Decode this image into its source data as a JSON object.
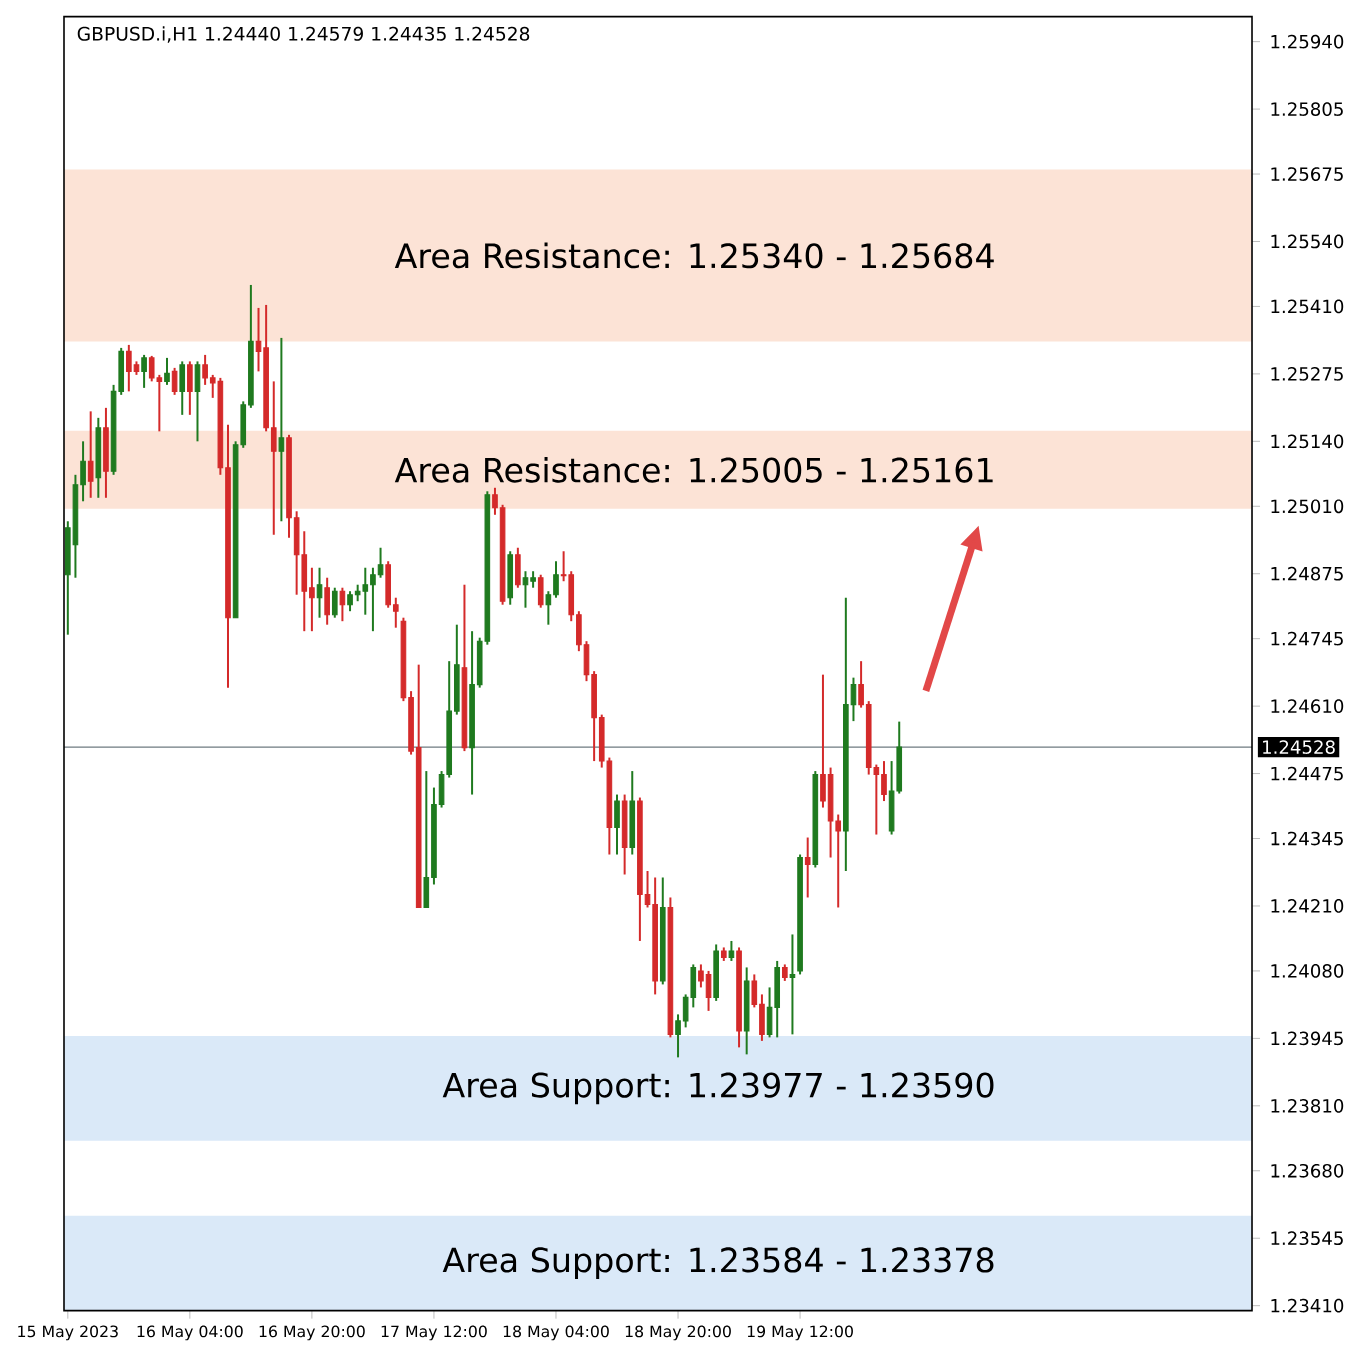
{
  "chart_data": {
    "type": "candlestick",
    "title": "GBPUSD.i,H1  1.24440 1.24579 1.24435 1.24528",
    "x": [
      "2023-05-15T12:00",
      "2023-05-15T13:00",
      "2023-05-15T14:00",
      "2023-05-15T15:00",
      "2023-05-15T16:00",
      "2023-05-15T17:00",
      "2023-05-15T18:00",
      "2023-05-15T19:00",
      "2023-05-15T20:00",
      "2023-05-15T21:00",
      "2023-05-15T22:00",
      "2023-05-15T23:00",
      "2023-05-16T00:00",
      "2023-05-16T01:00",
      "2023-05-16T02:00",
      "2023-05-16T03:00",
      "2023-05-16T04:00",
      "2023-05-16T05:00",
      "2023-05-16T06:00",
      "2023-05-16T07:00",
      "2023-05-16T08:00",
      "2023-05-16T09:00",
      "2023-05-16T10:00",
      "2023-05-16T11:00",
      "2023-05-16T12:00",
      "2023-05-16T13:00",
      "2023-05-16T14:00",
      "2023-05-16T15:00",
      "2023-05-16T16:00",
      "2023-05-16T17:00",
      "2023-05-16T18:00",
      "2023-05-16T19:00",
      "2023-05-16T20:00",
      "2023-05-16T21:00",
      "2023-05-16T22:00",
      "2023-05-16T23:00",
      "2023-05-17T00:00",
      "2023-05-17T01:00",
      "2023-05-17T02:00",
      "2023-05-17T03:00",
      "2023-05-17T04:00",
      "2023-05-17T05:00",
      "2023-05-17T06:00",
      "2023-05-17T07:00",
      "2023-05-17T08:00",
      "2023-05-17T09:00",
      "2023-05-17T10:00",
      "2023-05-17T11:00",
      "2023-05-17T12:00",
      "2023-05-17T13:00",
      "2023-05-17T14:00",
      "2023-05-17T15:00",
      "2023-05-17T16:00",
      "2023-05-17T17:00",
      "2023-05-17T18:00",
      "2023-05-17T19:00",
      "2023-05-17T20:00",
      "2023-05-17T21:00",
      "2023-05-17T22:00",
      "2023-05-17T23:00",
      "2023-05-18T00:00",
      "2023-05-18T01:00",
      "2023-05-18T02:00",
      "2023-05-18T03:00",
      "2023-05-18T04:00",
      "2023-05-18T05:00",
      "2023-05-18T06:00",
      "2023-05-18T07:00",
      "2023-05-18T08:00",
      "2023-05-18T09:00",
      "2023-05-18T10:00",
      "2023-05-18T11:00",
      "2023-05-18T12:00",
      "2023-05-18T13:00",
      "2023-05-18T14:00",
      "2023-05-18T15:00",
      "2023-05-18T16:00",
      "2023-05-18T17:00",
      "2023-05-18T18:00",
      "2023-05-18T19:00",
      "2023-05-18T20:00",
      "2023-05-18T21:00",
      "2023-05-18T22:00",
      "2023-05-18T23:00",
      "2023-05-19T00:00",
      "2023-05-19T01:00",
      "2023-05-19T02:00",
      "2023-05-19T03:00",
      "2023-05-19T04:00",
      "2023-05-19T05:00",
      "2023-05-19T06:00",
      "2023-05-19T07:00",
      "2023-05-19T08:00",
      "2023-05-19T09:00",
      "2023-05-19T10:00",
      "2023-05-19T11:00",
      "2023-05-19T12:00",
      "2023-05-19T13:00",
      "2023-05-19T14:00",
      "2023-05-19T15:00",
      "2023-05-19T16:00",
      "2023-05-19T17:00",
      "2023-05-19T18:00",
      "2023-05-19T19:00",
      "2023-05-19T20:00",
      "2023-05-19T21:00",
      "2023-05-19T22:00",
      "2023-05-19T23:00",
      "2023-05-20T00:00",
      "2023-05-20T01:00"
    ],
    "ohlc": [
      [
        1.24873,
        1.2498,
        1.24753,
        1.24967
      ],
      [
        1.24933,
        1.25073,
        1.24867,
        1.25053
      ],
      [
        1.25053,
        1.2514,
        1.2502,
        1.251
      ],
      [
        1.251,
        1.252,
        1.25027,
        1.2506
      ],
      [
        1.25067,
        1.25187,
        1.25027,
        1.25167
      ],
      [
        1.25167,
        1.25207,
        1.25027,
        1.2508
      ],
      [
        1.2508,
        1.25253,
        1.25073,
        1.2524
      ],
      [
        1.2524,
        1.25327,
        1.25233,
        1.2532
      ],
      [
        1.2532,
        1.25333,
        1.2524,
        1.2528
      ],
      [
        1.25293,
        1.253,
        1.25273,
        1.2528
      ],
      [
        1.2528,
        1.25313,
        1.25247,
        1.25307
      ],
      [
        1.25307,
        1.25311,
        1.2526,
        1.25267
      ],
      [
        1.25267,
        1.25273,
        1.2516,
        1.2526
      ],
      [
        1.2526,
        1.25307,
        1.25253,
        1.25276
      ],
      [
        1.2528,
        1.25287,
        1.25233,
        1.2524
      ],
      [
        1.2524,
        1.253,
        1.25193,
        1.25293
      ],
      [
        1.25293,
        1.253,
        1.25193,
        1.2524
      ],
      [
        1.2524,
        1.253,
        1.2514,
        1.25293
      ],
      [
        1.25293,
        1.25313,
        1.25253,
        1.25267
      ],
      [
        1.25267,
        1.25273,
        1.25227,
        1.25257
      ],
      [
        1.2526,
        1.25267,
        1.25073,
        1.25087
      ],
      [
        1.25087,
        1.25173,
        1.24647,
        1.24787
      ],
      [
        1.24787,
        1.2514,
        1.24787,
        1.25133
      ],
      [
        1.25133,
        1.2522,
        1.25127,
        1.25213
      ],
      [
        1.25213,
        1.25453,
        1.25207,
        1.2534
      ],
      [
        1.2534,
        1.25407,
        1.2528,
        1.2532
      ],
      [
        1.25327,
        1.25413,
        1.2516,
        1.25167
      ],
      [
        1.25167,
        1.2526,
        1.24953,
        1.2512
      ],
      [
        1.2512,
        1.25347,
        1.2498,
        1.25147
      ],
      [
        1.25147,
        1.25153,
        1.24947,
        1.24987
      ],
      [
        1.24987,
        1.25,
        1.24833,
        1.24913
      ],
      [
        1.24913,
        1.2496,
        1.2476,
        1.2484
      ],
      [
        1.24847,
        1.24887,
        1.2476,
        1.24827
      ],
      [
        1.24827,
        1.24887,
        1.24787,
        1.24853
      ],
      [
        1.24847,
        1.24867,
        1.24773,
        1.24793
      ],
      [
        1.24793,
        1.24847,
        1.24787,
        1.2484
      ],
      [
        1.2484,
        1.24847,
        1.2478,
        1.24813
      ],
      [
        1.24813,
        1.2484,
        1.248,
        1.24833
      ],
      [
        1.24833,
        1.24853,
        1.2482,
        1.2484
      ],
      [
        1.2484,
        1.24887,
        1.24793,
        1.24853
      ],
      [
        1.24853,
        1.24887,
        1.2476,
        1.24873
      ],
      [
        1.24873,
        1.24927,
        1.24867,
        1.24893
      ],
      [
        1.24893,
        1.249,
        1.24807,
        1.24813
      ],
      [
        1.24813,
        1.24827,
        1.24767,
        1.248
      ],
      [
        1.2478,
        1.24787,
        1.2462,
        1.24627
      ],
      [
        1.24627,
        1.2464,
        1.24513,
        1.2452
      ],
      [
        1.24527,
        1.24693,
        1.24207,
        1.24207
      ],
      [
        1.24207,
        1.2448,
        1.24207,
        1.24267
      ],
      [
        1.24267,
        1.24447,
        1.24253,
        1.24413
      ],
      [
        1.24413,
        1.2448,
        1.24407,
        1.24473
      ],
      [
        1.24473,
        1.247,
        1.24467,
        1.246
      ],
      [
        1.246,
        1.24773,
        1.24593,
        1.24693
      ],
      [
        1.24687,
        1.24853,
        1.2452,
        1.24527
      ],
      [
        1.24527,
        1.2476,
        1.24433,
        1.24653
      ],
      [
        1.24653,
        1.24747,
        1.24647,
        1.2474
      ],
      [
        1.2474,
        1.2504,
        1.24733,
        1.25033
      ],
      [
        1.25033,
        1.25047,
        1.24993,
        1.25007
      ],
      [
        1.25007,
        1.25013,
        1.24813,
        1.2482
      ],
      [
        1.24827,
        1.2492,
        1.24813,
        1.24913
      ],
      [
        1.24913,
        1.24927,
        1.24847,
        1.24853
      ],
      [
        1.24853,
        1.2488,
        1.24807,
        1.24867
      ],
      [
        1.2486,
        1.2488,
        1.24847,
        1.24867
      ],
      [
        1.24867,
        1.24873,
        1.24807,
        1.24813
      ],
      [
        1.24813,
        1.2484,
        1.24773,
        1.24833
      ],
      [
        1.24833,
        1.249,
        1.24827,
        1.24873
      ],
      [
        1.24873,
        1.2492,
        1.2486,
        1.24871
      ],
      [
        1.24873,
        1.2488,
        1.2478,
        1.24793
      ],
      [
        1.24793,
        1.248,
        1.2472,
        1.24733
      ],
      [
        1.24733,
        1.2474,
        1.2466,
        1.24673
      ],
      [
        1.24673,
        1.2468,
        1.245,
        1.24587
      ],
      [
        1.24587,
        1.24593,
        1.24487,
        1.245
      ],
      [
        1.245,
        1.24507,
        1.24313,
        1.24367
      ],
      [
        1.24367,
        1.24433,
        1.24313,
        1.2442
      ],
      [
        1.2442,
        1.24433,
        1.24273,
        1.24327
      ],
      [
        1.24327,
        1.2448,
        1.24313,
        1.2442
      ],
      [
        1.2442,
        1.24427,
        1.2414,
        1.24233
      ],
      [
        1.24233,
        1.2428,
        1.24207,
        1.24213
      ],
      [
        1.24213,
        1.24267,
        1.24033,
        1.2406
      ],
      [
        1.2406,
        1.24267,
        1.24053,
        1.24207
      ],
      [
        1.24207,
        1.24227,
        1.23947,
        1.23953
      ],
      [
        1.23953,
        1.23993,
        1.23907,
        1.2398
      ],
      [
        1.2398,
        1.24033,
        1.23967,
        1.24027
      ],
      [
        1.24027,
        1.24093,
        1.24007,
        1.24087
      ],
      [
        1.2408,
        1.24093,
        1.24047,
        1.2406
      ],
      [
        1.24073,
        1.2408,
        1.24,
        1.24027
      ],
      [
        1.24027,
        1.24133,
        1.2402,
        1.2412
      ],
      [
        1.2412,
        1.24127,
        1.241,
        1.24107
      ],
      [
        1.24107,
        1.2414,
        1.241,
        1.2412
      ],
      [
        1.2412,
        1.24127,
        1.23927,
        1.2396
      ],
      [
        1.2396,
        1.24087,
        1.23913,
        1.2406
      ],
      [
        1.2406,
        1.24073,
        1.24007,
        1.24013
      ],
      [
        1.24013,
        1.24033,
        1.2394,
        1.23953
      ],
      [
        1.23953,
        1.24047,
        1.23947,
        1.24007
      ],
      [
        1.24007,
        1.241,
        1.23947,
        1.24087
      ],
      [
        1.24087,
        1.24093,
        1.2406,
        1.24067
      ],
      [
        1.24067,
        1.24153,
        1.23953,
        1.24073
      ],
      [
        1.2408,
        1.24313,
        1.24073,
        1.24307
      ],
      [
        1.24307,
        1.24347,
        1.24227,
        1.24293
      ],
      [
        1.24293,
        1.2448,
        1.24287,
        1.24473
      ],
      [
        1.24473,
        1.24673,
        1.24407,
        1.2442
      ],
      [
        1.24473,
        1.24487,
        1.24307,
        1.2438
      ],
      [
        1.2438,
        1.24393,
        1.24207,
        1.2436
      ],
      [
        1.2436,
        1.24827,
        1.2428,
        1.24613
      ],
      [
        1.24613,
        1.24667,
        1.2458,
        1.24653
      ],
      [
        1.24653,
        1.247,
        1.24607,
        1.24613
      ],
      [
        1.24613,
        1.2462,
        1.24473,
        1.24487
      ],
      [
        1.24487,
        1.24493,
        1.24353,
        1.24473
      ],
      [
        1.24473,
        1.245,
        1.2442,
        1.24433
      ],
      [
        1.2436,
        1.245,
        1.24353,
        1.2444
      ],
      [
        1.2444,
        1.24579,
        1.24435,
        1.24528
      ]
    ],
    "colors": [
      "#1f7a1f",
      "#1f7a1f",
      "#1f7a1f",
      "#d42a2a",
      "#1f7a1f",
      "#d42a2a",
      "#1f7a1f",
      "#1f7a1f",
      "#d42a2a",
      "#d42a2a",
      "#1f7a1f",
      "#d42a2a",
      "#d42a2a",
      "#1f7a1f",
      "#d42a2a",
      "#1f7a1f",
      "#d42a2a",
      "#1f7a1f",
      "#d42a2a",
      "#d42a2a",
      "#d42a2a",
      "#d42a2a",
      "#1f7a1f",
      "#1f7a1f",
      "#1f7a1f",
      "#d42a2a",
      "#d42a2a",
      "#d42a2a",
      "#1f7a1f",
      "#d42a2a",
      "#d42a2a",
      "#d42a2a",
      "#d42a2a",
      "#1f7a1f",
      "#d42a2a",
      "#1f7a1f",
      "#d42a2a",
      "#1f7a1f",
      "#1f7a1f",
      "#1f7a1f",
      "#1f7a1f",
      "#1f7a1f",
      "#d42a2a",
      "#d42a2a",
      "#d42a2a",
      "#d42a2a",
      "#d42a2a",
      "#1f7a1f",
      "#1f7a1f",
      "#1f7a1f",
      "#1f7a1f",
      "#1f7a1f",
      "#d42a2a",
      "#1f7a1f",
      "#1f7a1f",
      "#1f7a1f",
      "#d42a2a",
      "#d42a2a",
      "#1f7a1f",
      "#d42a2a",
      "#1f7a1f",
      "#1f7a1f",
      "#d42a2a",
      "#1f7a1f",
      "#1f7a1f",
      "#d42a2a",
      "#d42a2a",
      "#d42a2a",
      "#d42a2a",
      "#d42a2a",
      "#d42a2a",
      "#d42a2a",
      "#1f7a1f",
      "#d42a2a",
      "#1f7a1f",
      "#d42a2a",
      "#d42a2a",
      "#d42a2a",
      "#1f7a1f",
      "#d42a2a",
      "#1f7a1f",
      "#1f7a1f",
      "#1f7a1f",
      "#d42a2a",
      "#d42a2a",
      "#1f7a1f",
      "#d42a2a",
      "#1f7a1f",
      "#d42a2a",
      "#1f7a1f",
      "#d42a2a",
      "#d42a2a",
      "#1f7a1f",
      "#1f7a1f",
      "#d42a2a",
      "#1f7a1f",
      "#1f7a1f",
      "#d42a2a",
      "#1f7a1f",
      "#d42a2a",
      "#d42a2a",
      "#d42a2a",
      "#1f7a1f",
      "#1f7a1f",
      "#d42a2a",
      "#d42a2a",
      "#d42a2a",
      "#d42a2a",
      "#1f7a1f",
      "#1f7a1f"
    ],
    "xlim": [
      "2023-05-15T11:30",
      "2023-05-21T23:15"
    ],
    "xticks": [
      {
        "value": "2023-05-15T12:00",
        "label": "15 May 2023"
      },
      {
        "value": "2023-05-16T04:00",
        "label": "16 May 04:00"
      },
      {
        "value": "2023-05-16T20:00",
        "label": "16 May 20:00"
      },
      {
        "value": "2023-05-17T12:00",
        "label": "17 May 12:00"
      },
      {
        "value": "2023-05-18T04:00",
        "label": "18 May 04:00"
      },
      {
        "value": "2023-05-18T20:00",
        "label": "18 May 20:00"
      },
      {
        "value": "2023-05-19T12:00",
        "label": "19 May 12:00"
      }
    ],
    "ylim": [
      1.234,
      1.2599
    ],
    "yticks": [
      {
        "value": 1.2594,
        "label": "1.25940"
      },
      {
        "value": 1.25805,
        "label": "1.25805"
      },
      {
        "value": 1.25675,
        "label": "1.25675"
      },
      {
        "value": 1.2554,
        "label": "1.25540"
      },
      {
        "value": 1.2541,
        "label": "1.25410"
      },
      {
        "value": 1.25275,
        "label": "1.25275"
      },
      {
        "value": 1.2514,
        "label": "1.25140"
      },
      {
        "value": 1.2501,
        "label": "1.25010"
      },
      {
        "value": 1.24875,
        "label": "1.24875"
      },
      {
        "value": 1.24745,
        "label": "1.24745"
      },
      {
        "value": 1.2461,
        "label": "1.24610"
      },
      {
        "value": 1.24475,
        "label": "1.24475"
      },
      {
        "value": 1.24345,
        "label": "1.24345"
      },
      {
        "value": 1.2421,
        "label": "1.24210"
      },
      {
        "value": 1.2408,
        "label": "1.24080"
      },
      {
        "value": 1.23945,
        "label": "1.23945"
      },
      {
        "value": 1.2381,
        "label": "1.23810"
      },
      {
        "value": 1.2368,
        "label": "1.23680"
      },
      {
        "value": 1.23545,
        "label": "1.23545"
      },
      {
        "value": 1.2341,
        "label": "1.23410"
      }
    ],
    "bands": [
      {
        "axis": "y",
        "from": 1.2534,
        "to": 1.25684,
        "label": "Area Resistance: 1.25340 - 1.25684",
        "color": "#fce3d6"
      },
      {
        "axis": "y",
        "from": 1.25005,
        "to": 1.25161,
        "label": "Area Resistance: 1.25005 - 1.25161",
        "color": "#fce3d6"
      },
      {
        "axis": "y",
        "from": 1.2374,
        "to": 1.2395,
        "label": "Area Support: 1.23977 - 1.23590",
        "color": "#dae9f8"
      },
      {
        "axis": "y",
        "from": 1.234,
        "to": 1.2359,
        "label": "Area Support: 1.23584 - 1.23378",
        "color": "#dae9f8"
      }
    ],
    "ref_lines": [
      {
        "axis": "y",
        "value": 1.24528,
        "label": "1.24528",
        "color": "#6e7a80"
      }
    ]
  }
}
